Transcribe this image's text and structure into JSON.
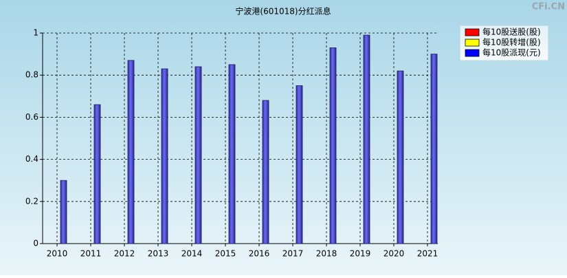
{
  "chart_data": {
    "type": "bar",
    "title": "宁波港(601018)分红派息",
    "watermark": "CFi.CN",
    "categories": [
      "2010",
      "2011",
      "2012",
      "2013",
      "2014",
      "2015",
      "2016",
      "2017",
      "2018",
      "2019",
      "2020",
      "2021"
    ],
    "series": [
      {
        "name": "每10股送股(股)",
        "color": "#ff0000",
        "values": [
          null,
          null,
          null,
          null,
          null,
          null,
          null,
          null,
          null,
          null,
          null,
          null
        ]
      },
      {
        "name": "每10股转增(股)",
        "color": "#ffff00",
        "values": [
          null,
          null,
          null,
          null,
          null,
          null,
          null,
          null,
          null,
          null,
          null,
          null
        ]
      },
      {
        "name": "每10股派现(元)",
        "color": "#0000ff",
        "values": [
          0.3,
          0.66,
          0.87,
          0.83,
          0.84,
          0.85,
          0.68,
          0.75,
          0.93,
          0.99,
          0.82,
          0.9
        ]
      }
    ],
    "ylim": [
      0,
      1
    ],
    "yticks": [
      0,
      0.2,
      0.4,
      0.6,
      0.8,
      1
    ],
    "grid": true,
    "legend": "top-right"
  }
}
